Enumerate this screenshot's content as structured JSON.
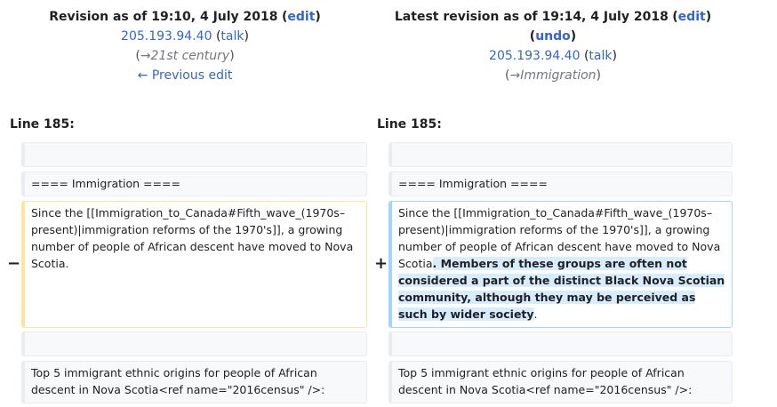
{
  "left_header": {
    "title_prefix": "Revision as of 19:10, 4 July 2018",
    "edit_label": "edit",
    "user": "205.193.94.40",
    "talk_label": "talk",
    "comment_arrow": "→",
    "comment": "21st century",
    "previous_edit": "← Previous edit"
  },
  "right_header": {
    "title_prefix": "Latest revision as of 19:14, 4 July 2018",
    "edit_label": "edit",
    "undo_label": "undo",
    "user": "205.193.94.40",
    "talk_label": "talk",
    "comment_arrow": "→",
    "comment": "Immigration"
  },
  "line_label_left": "Line 185:",
  "line_label_right": "Line 185:",
  "rows": {
    "heading_text": "==== Immigration ====",
    "old_text": "Since the [[Immigration_to_Canada#Fifth_wave_(1970s–present)|immigration reforms of the 1970's]], a growing number of people of African descent have moved to Nova Scotia.",
    "new_text_prefix": "Since the [[Immigration_to_Canada#Fifth_wave_(1970s–present)|immigration reforms of the 1970's]], a growing number of people of African descent have moved to Nova Scotia",
    "new_text_inserted": ". Members of these groups are often not considered a part of the distinct Black Nova Scotian community, although they may be perceived as such by wider society",
    "new_text_suffix": ".",
    "context_text": "Top 5 immigrant ethnic origins for people of African descent in Nova Scotia<ref name=\"2016census\" />:"
  },
  "markers": {
    "minus": "−",
    "plus": "+"
  }
}
